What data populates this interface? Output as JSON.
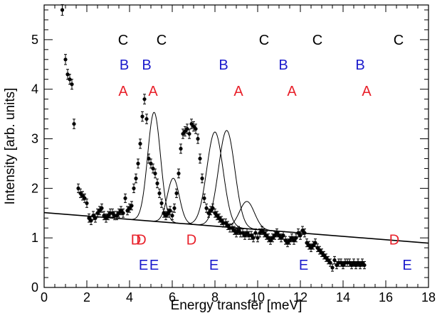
{
  "chart_data": {
    "type": "scatter",
    "xlabel": "Energy transfer [meV]",
    "ylabel": "Intensity [arb. units]",
    "xlim": [
      0,
      18
    ],
    "ylim": [
      0,
      5.7
    ],
    "x_ticks": [
      0,
      2,
      4,
      6,
      8,
      10,
      12,
      14,
      16,
      18
    ],
    "y_ticks": [
      0,
      1,
      2,
      3,
      4,
      5
    ],
    "grid": false,
    "colors": {
      "A": "#e8202a",
      "B": "#1a1acc",
      "C": "#000000",
      "D": "#e8202a",
      "E": "#1a1acc",
      "data": "#000000"
    },
    "data_points": {
      "x": [
        0.85,
        1.0,
        1.1,
        1.2,
        1.3,
        1.4,
        1.6,
        1.7,
        1.8,
        1.9,
        2.0,
        2.1,
        2.2,
        2.3,
        2.4,
        2.5,
        2.6,
        2.7,
        2.8,
        2.9,
        3.0,
        3.1,
        3.2,
        3.3,
        3.4,
        3.5,
        3.6,
        3.7,
        3.8,
        3.9,
        4.0,
        4.1,
        4.2,
        4.3,
        4.4,
        4.5,
        4.6,
        4.7,
        4.8,
        4.9,
        5.0,
        5.1,
        5.2,
        5.3,
        5.4,
        5.5,
        5.6,
        5.7,
        5.8,
        5.9,
        6.0,
        6.1,
        6.2,
        6.3,
        6.4,
        6.5,
        6.6,
        6.7,
        6.8,
        6.9,
        7.0,
        7.1,
        7.2,
        7.3,
        7.4,
        7.5,
        7.6,
        7.7,
        7.8,
        7.9,
        8.0,
        8.1,
        8.2,
        8.3,
        8.4,
        8.5,
        8.6,
        8.7,
        8.8,
        8.9,
        9.0,
        9.1,
        9.2,
        9.3,
        9.4,
        9.5,
        9.6,
        9.7,
        9.8,
        9.9,
        10.0,
        10.1,
        10.2,
        10.3,
        10.4,
        10.5,
        10.6,
        10.7,
        10.8,
        10.9,
        11.0,
        11.1,
        11.2,
        11.3,
        11.4,
        11.5,
        11.6,
        11.7,
        11.8,
        11.9,
        12.0,
        12.1,
        12.2,
        12.3,
        12.4,
        12.5,
        12.6,
        12.7,
        12.8,
        12.9,
        13.0,
        13.1,
        13.2,
        13.3,
        13.4,
        13.5,
        13.6,
        13.7,
        13.8,
        13.9,
        14.0,
        14.1,
        14.2,
        14.3,
        14.4,
        14.5,
        14.6,
        14.7,
        14.8,
        14.9,
        15.0
      ],
      "y": [
        5.6,
        4.6,
        4.3,
        4.2,
        4.1,
        3.3,
        2.0,
        1.9,
        1.85,
        1.8,
        1.7,
        1.4,
        1.35,
        1.45,
        1.4,
        1.5,
        1.55,
        1.6,
        1.45,
        1.4,
        1.45,
        1.5,
        1.5,
        1.45,
        1.45,
        1.5,
        1.55,
        1.5,
        1.8,
        1.55,
        1.6,
        1.65,
        2.0,
        2.2,
        2.5,
        2.9,
        3.45,
        3.8,
        3.4,
        2.6,
        2.5,
        2.4,
        2.3,
        2.1,
        1.9,
        1.7,
        1.5,
        1.45,
        1.5,
        1.55,
        1.45,
        1.6,
        1.9,
        2.3,
        2.8,
        3.1,
        3.15,
        3.2,
        3.1,
        3.3,
        3.25,
        3.2,
        3.0,
        2.6,
        2.2,
        1.8,
        1.6,
        1.5,
        1.55,
        1.6,
        1.5,
        1.45,
        1.4,
        1.35,
        1.3,
        1.3,
        1.25,
        1.2,
        1.2,
        1.15,
        1.1,
        1.15,
        1.1,
        1.1,
        1.05,
        1.1,
        1.05,
        1.05,
        1.0,
        1.1,
        1.0,
        1.1,
        1.15,
        1.1,
        1.05,
        1.0,
        0.95,
        1.0,
        1.05,
        1.1,
        1.05,
        1.0,
        1.05,
        0.95,
        0.9,
        0.95,
        1.0,
        0.95,
        1.0,
        1.1,
        1.05,
        1.15,
        1.1,
        0.9,
        0.85,
        0.8,
        0.85,
        0.9,
        0.8,
        0.75,
        0.7,
        0.65,
        0.6,
        0.55,
        0.5,
        0.4,
        0.55,
        0.45,
        0.5,
        0.5,
        0.45,
        0.5,
        0.5,
        0.5,
        0.45,
        0.5,
        0.45,
        0.5,
        0.45,
        0.5,
        0.45
      ]
    },
    "background_line": {
      "intercept": 1.51,
      "slope": -0.0342
    },
    "peaks": [
      {
        "center": 5.15,
        "amplitude": 2.2,
        "sigma": 0.3
      },
      {
        "center": 6.05,
        "amplitude": 0.9,
        "sigma": 0.28
      },
      {
        "center": 8.0,
        "amplitude": 1.9,
        "sigma": 0.38
      },
      {
        "center": 8.55,
        "amplitude": 1.95,
        "sigma": 0.38
      },
      {
        "center": 9.5,
        "amplitude": 0.55,
        "sigma": 0.35
      }
    ],
    "annotations": [
      {
        "text": "C",
        "x": 3.7,
        "y": 5.0,
        "color": "C"
      },
      {
        "text": "C",
        "x": 5.5,
        "y": 5.0,
        "color": "C"
      },
      {
        "text": "C",
        "x": 10.3,
        "y": 5.0,
        "color": "C"
      },
      {
        "text": "C",
        "x": 12.8,
        "y": 5.0,
        "color": "C"
      },
      {
        "text": "C",
        "x": 16.6,
        "y": 5.0,
        "color": "C"
      },
      {
        "text": "B",
        "x": 3.75,
        "y": 4.5,
        "color": "B"
      },
      {
        "text": "B",
        "x": 4.8,
        "y": 4.5,
        "color": "B"
      },
      {
        "text": "B",
        "x": 8.4,
        "y": 4.5,
        "color": "B"
      },
      {
        "text": "B",
        "x": 11.2,
        "y": 4.5,
        "color": "B"
      },
      {
        "text": "B",
        "x": 14.8,
        "y": 4.5,
        "color": "B"
      },
      {
        "text": "A",
        "x": 3.7,
        "y": 3.97,
        "color": "A"
      },
      {
        "text": "A",
        "x": 5.1,
        "y": 3.97,
        "color": "A"
      },
      {
        "text": "A",
        "x": 9.1,
        "y": 3.97,
        "color": "A"
      },
      {
        "text": "A",
        "x": 11.6,
        "y": 3.97,
        "color": "A"
      },
      {
        "text": "A",
        "x": 15.1,
        "y": 3.97,
        "color": "A"
      },
      {
        "text": "D",
        "x": 4.3,
        "y": 0.97,
        "color": "D"
      },
      {
        "text": "D",
        "x": 4.55,
        "y": 0.97,
        "color": "D"
      },
      {
        "text": "D",
        "x": 6.9,
        "y": 0.97,
        "color": "D"
      },
      {
        "text": "D",
        "x": 16.4,
        "y": 0.97,
        "color": "D"
      },
      {
        "text": "E",
        "x": 4.65,
        "y": 0.46,
        "color": "E"
      },
      {
        "text": "E",
        "x": 5.15,
        "y": 0.46,
        "color": "E"
      },
      {
        "text": "E",
        "x": 7.95,
        "y": 0.46,
        "color": "E"
      },
      {
        "text": "E",
        "x": 12.15,
        "y": 0.46,
        "color": "E"
      },
      {
        "text": "E",
        "x": 17.0,
        "y": 0.46,
        "color": "E"
      }
    ]
  }
}
